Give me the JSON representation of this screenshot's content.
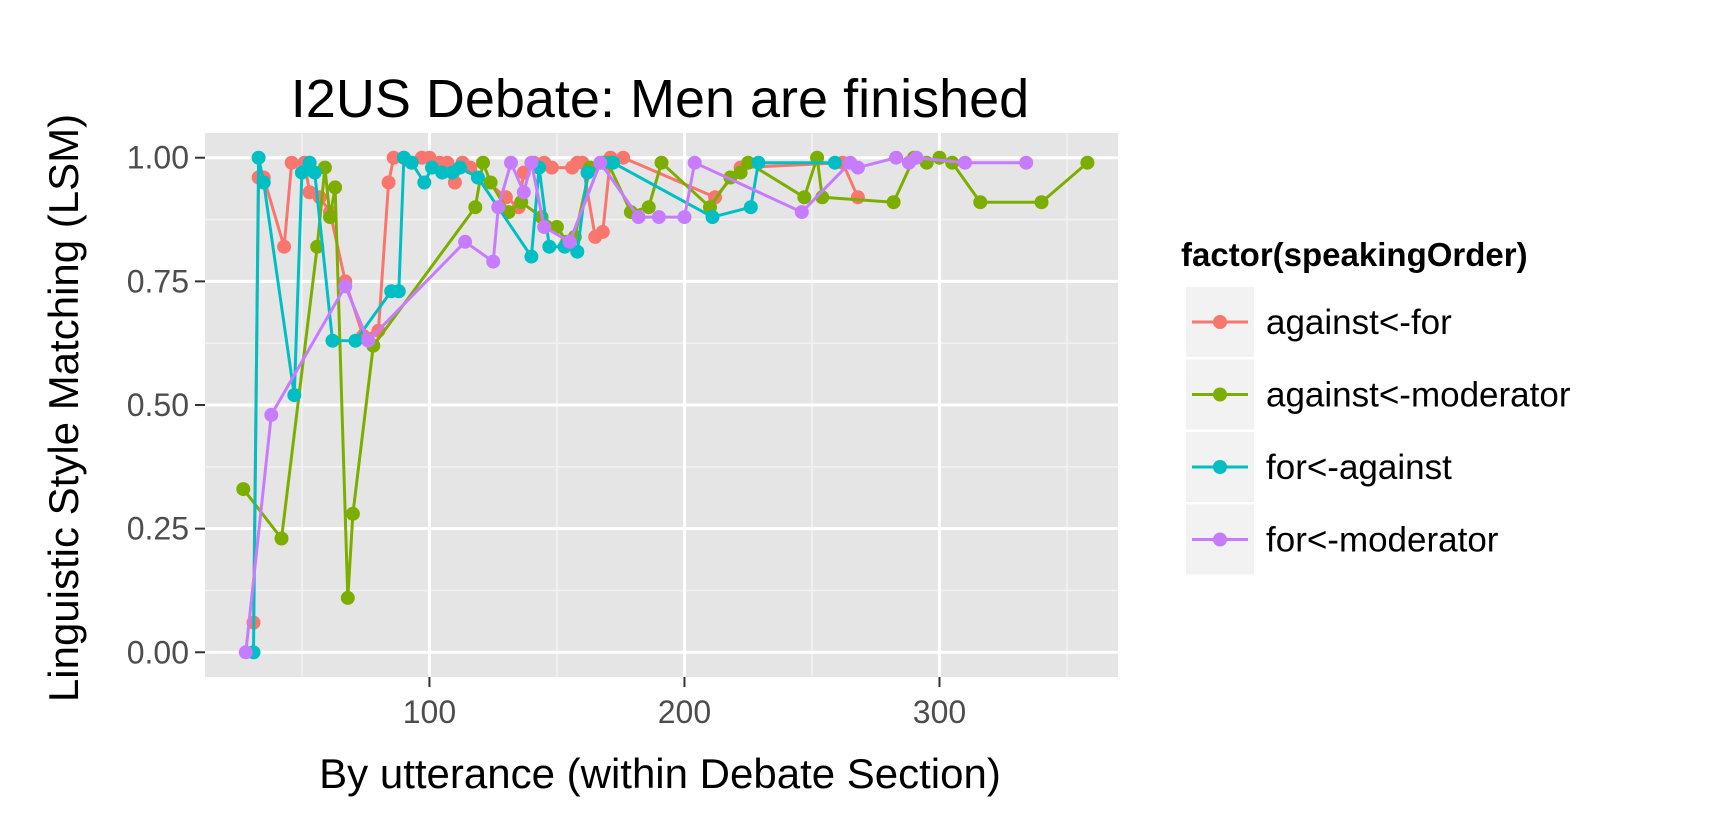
{
  "chart_data": {
    "type": "line",
    "title": "I2US Debate: Men are finished",
    "xlabel": "By utterance (within Debate Section)",
    "ylabel": "Linguistic Style Matching (LSM)",
    "xlim": [
      12,
      370
    ],
    "ylim": [
      -0.05,
      1.05
    ],
    "x_ticks": [
      100,
      200,
      300
    ],
    "x_tick_labels": [
      "100",
      "200",
      "300"
    ],
    "y_ticks": [
      0,
      0.25,
      0.5,
      0.75,
      1.0
    ],
    "y_tick_labels": [
      "0.00",
      "0.25",
      "0.50",
      "0.75",
      "1.00"
    ],
    "grid": true,
    "legend": {
      "title": "factor(speakingOrder)",
      "position": "right"
    },
    "series": [
      {
        "name": "against<-for",
        "color": "#F8766D",
        "points": [
          [
            31,
            0.06
          ],
          [
            33,
            0.96
          ],
          [
            35,
            0.96
          ],
          [
            43,
            0.82
          ],
          [
            46,
            0.99
          ],
          [
            51,
            0.99
          ],
          [
            53,
            0.93
          ],
          [
            57,
            0.92
          ],
          [
            61,
            0.89
          ],
          [
            67,
            0.75
          ],
          [
            74,
            0.64
          ],
          [
            80,
            0.65
          ],
          [
            84,
            0.95
          ],
          [
            86,
            1.0
          ],
          [
            90,
            1.0
          ],
          [
            93,
            0.99
          ],
          [
            97,
            1.0
          ],
          [
            100,
            1.0
          ],
          [
            104,
            0.99
          ],
          [
            107,
            0.99
          ],
          [
            110,
            0.95
          ],
          [
            113,
            0.99
          ],
          [
            116,
            0.98
          ],
          [
            130,
            0.92
          ],
          [
            135,
            0.9
          ],
          [
            137,
            0.97
          ],
          [
            141,
            0.99
          ],
          [
            145,
            0.99
          ],
          [
            148,
            0.98
          ],
          [
            156,
            0.98
          ],
          [
            158,
            0.99
          ],
          [
            160,
            0.99
          ],
          [
            165,
            0.84
          ],
          [
            168,
            0.85
          ],
          [
            171,
            1.0
          ],
          [
            176,
            1.0
          ],
          [
            212,
            0.92
          ],
          [
            222,
            0.98
          ],
          [
            262,
            0.99
          ],
          [
            268,
            0.92
          ]
        ]
      },
      {
        "name": "against<-moderator",
        "color": "#7CAE00",
        "points": [
          [
            27,
            0.33
          ],
          [
            42,
            0.23
          ],
          [
            56,
            0.82
          ],
          [
            59,
            0.98
          ],
          [
            61,
            0.88
          ],
          [
            63,
            0.94
          ],
          [
            68,
            0.11
          ],
          [
            70,
            0.28
          ],
          [
            78,
            0.62
          ],
          [
            118,
            0.9
          ],
          [
            121,
            0.99
          ],
          [
            124,
            0.95
          ],
          [
            131,
            0.89
          ],
          [
            136,
            0.91
          ],
          [
            144,
            0.88
          ],
          [
            150,
            0.86
          ],
          [
            154,
            0.83
          ],
          [
            157,
            0.84
          ],
          [
            163,
            0.98
          ],
          [
            170,
            0.99
          ],
          [
            179,
            0.89
          ],
          [
            186,
            0.9
          ],
          [
            191,
            0.99
          ],
          [
            210,
            0.9
          ],
          [
            218,
            0.96
          ],
          [
            222,
            0.97
          ],
          [
            225,
            0.99
          ],
          [
            247,
            0.92
          ],
          [
            252,
            1.0
          ],
          [
            254,
            0.92
          ],
          [
            282,
            0.91
          ],
          [
            290,
            1.0
          ],
          [
            295,
            0.99
          ],
          [
            300,
            1.0
          ],
          [
            305,
            0.99
          ],
          [
            316,
            0.91
          ],
          [
            340,
            0.91
          ],
          [
            358,
            0.99
          ]
        ]
      },
      {
        "name": "for<-against",
        "color": "#00BFC4",
        "points": [
          [
            31,
            0.0
          ],
          [
            33,
            1.0
          ],
          [
            35,
            0.95
          ],
          [
            47,
            0.52
          ],
          [
            50,
            0.97
          ],
          [
            53,
            0.99
          ],
          [
            55,
            0.97
          ],
          [
            62,
            0.63
          ],
          [
            71,
            0.63
          ],
          [
            85,
            0.73
          ],
          [
            88,
            0.73
          ],
          [
            90,
            1.0
          ],
          [
            93,
            0.99
          ],
          [
            98,
            0.95
          ],
          [
            101,
            0.98
          ],
          [
            105,
            0.97
          ],
          [
            109,
            0.97
          ],
          [
            112,
            0.98
          ],
          [
            119,
            0.96
          ],
          [
            140,
            0.8
          ],
          [
            143,
            0.98
          ],
          [
            147,
            0.82
          ],
          [
            153,
            0.82
          ],
          [
            158,
            0.81
          ],
          [
            162,
            0.97
          ],
          [
            168,
            0.99
          ],
          [
            172,
            0.99
          ],
          [
            211,
            0.88
          ],
          [
            226,
            0.9
          ],
          [
            229,
            0.99
          ],
          [
            259,
            0.99
          ]
        ]
      },
      {
        "name": "for<-moderator",
        "color": "#C77CFF",
        "points": [
          [
            28,
            0.0
          ],
          [
            38,
            0.48
          ],
          [
            67,
            0.74
          ],
          [
            76,
            0.63
          ],
          [
            114,
            0.83
          ],
          [
            125,
            0.79
          ],
          [
            127,
            0.9
          ],
          [
            132,
            0.99
          ],
          [
            137,
            0.93
          ],
          [
            140,
            0.99
          ],
          [
            145,
            0.86
          ],
          [
            155,
            0.83
          ],
          [
            167,
            0.99
          ],
          [
            182,
            0.88
          ],
          [
            190,
            0.88
          ],
          [
            200,
            0.88
          ],
          [
            204,
            0.99
          ],
          [
            246,
            0.89
          ],
          [
            265,
            0.99
          ],
          [
            268,
            0.98
          ],
          [
            283,
            1.0
          ],
          [
            288,
            0.99
          ],
          [
            291,
            1.0
          ],
          [
            310,
            0.99
          ],
          [
            334,
            0.99
          ]
        ]
      }
    ]
  }
}
